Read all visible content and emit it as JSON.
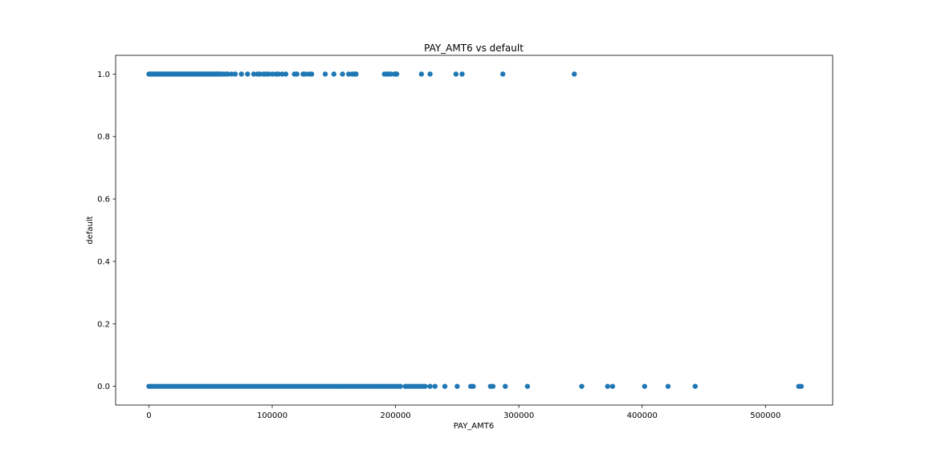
{
  "chart_data": {
    "type": "scatter",
    "title": "PAY_AMT6 vs default",
    "xlabel": "PAY_AMT6",
    "ylabel": "default",
    "xlim": [
      -27000,
      554500
    ],
    "ylim": [
      -0.06,
      1.06
    ],
    "xticks": [
      0,
      100000,
      200000,
      300000,
      400000,
      500000
    ],
    "xtick_labels": [
      "0",
      "100000",
      "200000",
      "300000",
      "400000",
      "500000"
    ],
    "yticks": [
      0.0,
      0.2,
      0.4,
      0.6,
      0.8,
      1.0
    ],
    "ytick_labels": [
      "0.0",
      "0.2",
      "0.4",
      "0.6",
      "0.8",
      "1.0"
    ],
    "grid": false,
    "marker_color": "#1f77b4",
    "series": [
      {
        "x": [
          0,
          1000,
          2000,
          3000,
          4000,
          5000,
          6000,
          7000,
          8000,
          9000,
          10000,
          11000,
          12000,
          13000,
          14000,
          15000,
          16000,
          17000,
          18000,
          19000,
          20000,
          21000,
          22000,
          23000,
          24000,
          25000,
          26000,
          27000,
          28000,
          29000,
          30000,
          31000,
          32000,
          33000,
          34000,
          35000,
          36000,
          37000,
          38000,
          39000,
          40000,
          41000,
          42000,
          43000,
          44000,
          45000,
          46000,
          47000,
          48000,
          49000,
          50000,
          51000,
          52000,
          53000,
          54000,
          55000,
          56000,
          57000,
          58000,
          60000,
          62000,
          64000,
          67000,
          70000,
          75000,
          80000,
          85000,
          88000,
          90000,
          93000,
          95000,
          97000,
          100000,
          103000,
          105000,
          108000,
          111000,
          118000,
          120000,
          125000,
          127000,
          130000,
          132000,
          143000,
          150000,
          157000,
          162000,
          165000,
          167000,
          168000,
          191000,
          193000,
          194000,
          196000,
          199000,
          200000,
          201000,
          221000,
          228000,
          249000,
          254000,
          287000,
          345000
        ],
        "y": [
          1,
          1,
          1,
          1,
          1,
          1,
          1,
          1,
          1,
          1,
          1,
          1,
          1,
          1,
          1,
          1,
          1,
          1,
          1,
          1,
          1,
          1,
          1,
          1,
          1,
          1,
          1,
          1,
          1,
          1,
          1,
          1,
          1,
          1,
          1,
          1,
          1,
          1,
          1,
          1,
          1,
          1,
          1,
          1,
          1,
          1,
          1,
          1,
          1,
          1,
          1,
          1,
          1,
          1,
          1,
          1,
          1,
          1,
          1,
          1,
          1,
          1,
          1,
          1,
          1,
          1,
          1,
          1,
          1,
          1,
          1,
          1,
          1,
          1,
          1,
          1,
          1,
          1,
          1,
          1,
          1,
          1,
          1,
          1,
          1,
          1,
          1,
          1,
          1,
          1,
          1,
          1,
          1,
          1,
          1,
          1,
          1,
          1,
          1,
          1,
          1,
          1,
          1
        ]
      },
      {
        "x": [
          0,
          2000,
          4000,
          6000,
          8000,
          10000,
          12000,
          14000,
          16000,
          18000,
          20000,
          22000,
          24000,
          26000,
          28000,
          30000,
          32000,
          34000,
          36000,
          38000,
          40000,
          42000,
          44000,
          46000,
          48000,
          50000,
          52000,
          54000,
          56000,
          58000,
          60000,
          62000,
          64000,
          66000,
          68000,
          70000,
          72000,
          74000,
          76000,
          78000,
          80000,
          82000,
          84000,
          86000,
          88000,
          90000,
          92000,
          94000,
          96000,
          98000,
          100000,
          102000,
          104000,
          106000,
          108000,
          110000,
          112000,
          114000,
          116000,
          118000,
          120000,
          122000,
          124000,
          126000,
          128000,
          130000,
          132000,
          134000,
          136000,
          138000,
          140000,
          142000,
          144000,
          146000,
          148000,
          150000,
          152000,
          154000,
          156000,
          158000,
          160000,
          162000,
          164000,
          166000,
          168000,
          170000,
          172000,
          174000,
          176000,
          178000,
          180000,
          182000,
          184000,
          186000,
          188000,
          190000,
          192000,
          194000,
          196000,
          198000,
          200000,
          202000,
          204000,
          208000,
          210000,
          212000,
          214000,
          216000,
          218000,
          220000,
          222000,
          224000,
          228000,
          232000,
          240000,
          250000,
          261000,
          263000,
          277000,
          279000,
          289000,
          307000,
          351000,
          372000,
          376000,
          402000,
          421000,
          443000,
          527000,
          529000
        ],
        "y": [
          0,
          0,
          0,
          0,
          0,
          0,
          0,
          0,
          0,
          0,
          0,
          0,
          0,
          0,
          0,
          0,
          0,
          0,
          0,
          0,
          0,
          0,
          0,
          0,
          0,
          0,
          0,
          0,
          0,
          0,
          0,
          0,
          0,
          0,
          0,
          0,
          0,
          0,
          0,
          0,
          0,
          0,
          0,
          0,
          0,
          0,
          0,
          0,
          0,
          0,
          0,
          0,
          0,
          0,
          0,
          0,
          0,
          0,
          0,
          0,
          0,
          0,
          0,
          0,
          0,
          0,
          0,
          0,
          0,
          0,
          0,
          0,
          0,
          0,
          0,
          0,
          0,
          0,
          0,
          0,
          0,
          0,
          0,
          0,
          0,
          0,
          0,
          0,
          0,
          0,
          0,
          0,
          0,
          0,
          0,
          0,
          0,
          0,
          0,
          0,
          0,
          0,
          0,
          0,
          0,
          0,
          0,
          0,
          0,
          0,
          0,
          0,
          0,
          0,
          0,
          0,
          0,
          0,
          0,
          0,
          0,
          0,
          0,
          0,
          0,
          0,
          0,
          0,
          0,
          0
        ]
      }
    ]
  }
}
